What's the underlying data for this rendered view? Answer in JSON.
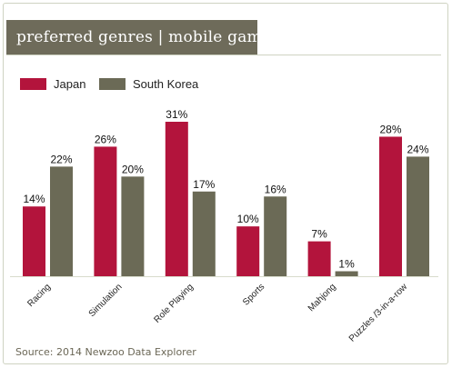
{
  "header": {
    "title": "preferred genres  | mobile gamers"
  },
  "source": "Source: 2014 Newzoo Data Explorer",
  "colors": {
    "japan": "#b3143c",
    "korea": "#6b6a56",
    "title_bg": "#6e6b5a"
  },
  "chart_data": {
    "type": "bar",
    "categories": [
      "Racing",
      "Simulation",
      "Role Playing",
      "Sports",
      "Mahjong",
      "Puzzles /3-in-a-row"
    ],
    "series": [
      {
        "name": "Japan",
        "values": [
          14,
          26,
          31,
          10,
          7,
          28
        ],
        "labels": [
          "14%",
          "26%",
          "31%",
          "10%",
          "7%",
          "28%"
        ]
      },
      {
        "name": "South Korea",
        "values": [
          22,
          20,
          17,
          16,
          1,
          24
        ],
        "labels": [
          "22%",
          "20%",
          "17%",
          "16%",
          "1%",
          "24%"
        ]
      }
    ],
    "ylim": [
      0,
      35
    ],
    "legend": "top-left",
    "grid": false
  }
}
